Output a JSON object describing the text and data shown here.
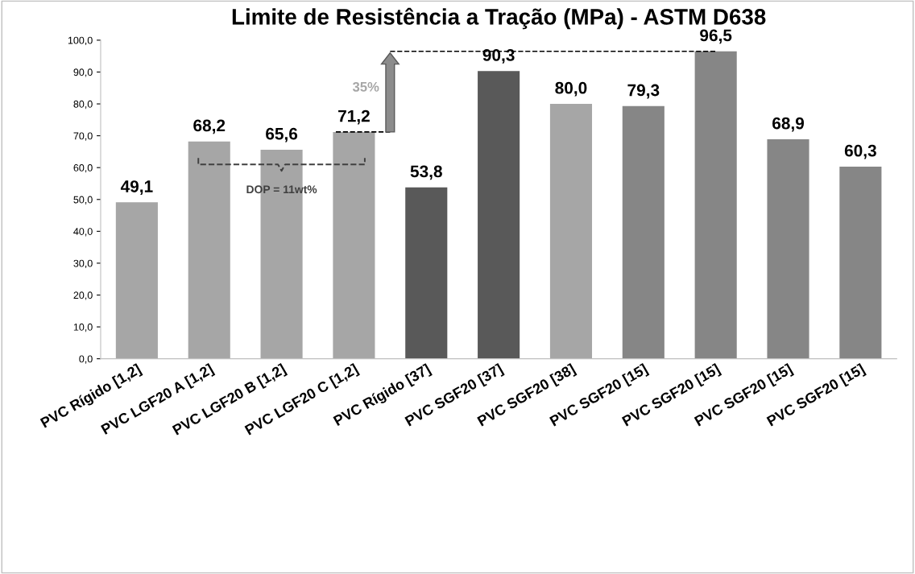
{
  "chart_data": {
    "type": "bar",
    "title": "Limite de Resistência a Tração (MPa) - ASTM D638",
    "categories": [
      "PVC Rígido [1,2]",
      "PVC LGF20 A [1,2]",
      "PVC LGF20 B [1,2]",
      "PVC LGF20 C [1,2]",
      "PVC Rígido [37]",
      "PVC SGF20 [37]",
      "PVC SGF20 [38]",
      "PVC SGF20 [15]",
      "PVC SGF20 [15]",
      "PVC SGF20 [15]",
      "PVC SGF20 [15]"
    ],
    "values": [
      49.1,
      68.2,
      65.6,
      71.2,
      53.8,
      90.3,
      80.0,
      79.3,
      96.5,
      68.9,
      60.3
    ],
    "colors": [
      "#a6a6a6",
      "#a6a6a6",
      "#a6a6a6",
      "#a6a6a6",
      "#595959",
      "#595959",
      "#a6a6a6",
      "#868686",
      "#868686",
      "#868686",
      "#868686"
    ],
    "value_labels": [
      "49,1",
      "68,2",
      "65,6",
      "71,2",
      "53,8",
      "90,3",
      "80,0",
      "79,3",
      "96,5",
      "68,9",
      "60,3"
    ],
    "ylim": [
      0,
      100
    ],
    "yticks": [
      {
        "value": 0,
        "label": "0,0"
      },
      {
        "value": 10,
        "label": "10,0"
      },
      {
        "value": 20,
        "label": "20,0"
      },
      {
        "value": 30,
        "label": "30,0"
      },
      {
        "value": 40,
        "label": "40,0"
      },
      {
        "value": 50,
        "label": "50,0"
      },
      {
        "value": 60,
        "label": "60,0"
      },
      {
        "value": 70,
        "label": "70,0"
      },
      {
        "value": 80,
        "label": "80,0"
      },
      {
        "value": 90,
        "label": "90,0"
      },
      {
        "value": 100,
        "label": "100,0"
      }
    ],
    "ref_lines": [
      {
        "axis": "y",
        "value": 96.5,
        "line_style": "dashed",
        "color": "#000000"
      }
    ],
    "annotations": [
      "35%",
      "DOP = 11wt%"
    ],
    "grid": false
  }
}
